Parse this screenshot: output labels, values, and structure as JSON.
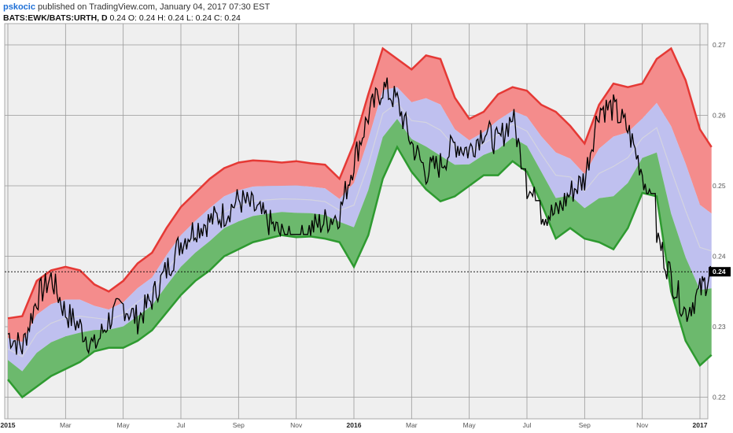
{
  "header": {
    "author": "pskocic",
    "published": " published on TradingView.com, January 04, 2017 07:30 EST",
    "symbol": "BATS:EWK/BATS:URTH, D",
    "ohlc": " 0.24 O: 0.24 H: 0.24 L: 0.24 C: 0.24"
  },
  "chart_data": {
    "type": "line",
    "x_ticks": [
      {
        "label": "2015",
        "month": 0,
        "bold": true
      },
      {
        "label": "Mar",
        "month": 2
      },
      {
        "label": "May",
        "month": 4
      },
      {
        "label": "Jul",
        "month": 6
      },
      {
        "label": "Sep",
        "month": 8
      },
      {
        "label": "Nov",
        "month": 10
      },
      {
        "label": "2016",
        "month": 12,
        "bold": true
      },
      {
        "label": "Mar",
        "month": 14
      },
      {
        "label": "May",
        "month": 16
      },
      {
        "label": "Jul",
        "month": 18
      },
      {
        "label": "Sep",
        "month": 20
      },
      {
        "label": "Nov",
        "month": 22
      },
      {
        "label": "2017",
        "month": 24,
        "bold": true
      }
    ],
    "y_ticks": [
      "0.27",
      "0.26",
      "0.25",
      "0.24",
      "0.23",
      "0.22"
    ],
    "ylim": [
      0.219,
      0.2725
    ],
    "xlim_months": [
      0,
      24.5
    ],
    "last_value_label": "0.24",
    "last_value": 0.2378,
    "colors": {
      "upper": "#e53935",
      "upper_fill": "#f48c8c",
      "mid_fill": "#bfc0ef",
      "mid_line": "#d4d4e0",
      "lower": "#2e9a30",
      "lower_fill": "#6cb96d",
      "price": "#000000"
    },
    "series": [
      {
        "x": [
          0,
          0.5,
          1,
          1.5,
          2,
          2.5,
          3,
          3.5,
          4,
          4.5,
          5,
          5.5,
          6,
          6.5,
          7,
          7.5,
          8,
          8.5,
          9,
          9.5,
          10,
          10.5,
          11,
          11.5,
          12,
          12.5,
          13,
          13.5,
          14,
          14.5,
          15,
          15.5,
          16,
          16.5,
          17,
          17.5,
          18,
          18.5,
          19,
          19.5,
          20,
          20.5,
          21,
          21.5,
          22,
          22.5,
          23,
          23.5,
          24,
          24.4
        ],
        "upper": [
          0.2312,
          0.2315,
          0.2365,
          0.238,
          0.2385,
          0.238,
          0.236,
          0.235,
          0.2365,
          0.239,
          0.2405,
          0.244,
          0.247,
          0.249,
          0.251,
          0.2525,
          0.2533,
          0.2536,
          0.2535,
          0.2533,
          0.2535,
          0.2532,
          0.253,
          0.251,
          0.256,
          0.263,
          0.2695,
          0.268,
          0.2665,
          0.2685,
          0.268,
          0.2625,
          0.2595,
          0.2605,
          0.263,
          0.264,
          0.2635,
          0.2615,
          0.2605,
          0.2585,
          0.256,
          0.2615,
          0.2645,
          0.264,
          0.2645,
          0.268,
          0.2695,
          0.265,
          0.258,
          0.2555
        ],
        "lower": [
          0.2225,
          0.22,
          0.2215,
          0.223,
          0.224,
          0.225,
          0.2265,
          0.227,
          0.227,
          0.228,
          0.2295,
          0.232,
          0.2345,
          0.2365,
          0.238,
          0.24,
          0.241,
          0.242,
          0.2425,
          0.243,
          0.2427,
          0.2428,
          0.2425,
          0.242,
          0.2385,
          0.243,
          0.251,
          0.2555,
          0.252,
          0.2495,
          0.2478,
          0.2485,
          0.25,
          0.2515,
          0.2515,
          0.2535,
          0.252,
          0.2475,
          0.2425,
          0.244,
          0.2425,
          0.242,
          0.241,
          0.244,
          0.249,
          0.2485,
          0.235,
          0.228,
          0.2245,
          0.226
        ],
        "price": [
          0.229,
          0.227,
          0.234,
          0.237,
          0.232,
          0.23,
          0.227,
          0.231,
          0.233,
          0.231,
          0.234,
          0.238,
          0.242,
          0.244,
          0.245,
          0.246,
          0.248,
          0.247,
          0.245,
          0.243,
          0.2415,
          0.244,
          0.245,
          0.246,
          0.2535,
          0.26,
          0.264,
          0.262,
          0.256,
          0.252,
          0.253,
          0.256,
          0.255,
          0.258,
          0.256,
          0.26,
          0.25,
          0.246,
          0.246,
          0.249,
          0.251,
          0.261,
          0.261,
          0.258,
          0.252,
          0.243,
          0.237,
          0.232,
          0.235,
          0.2378
        ]
      }
    ]
  }
}
